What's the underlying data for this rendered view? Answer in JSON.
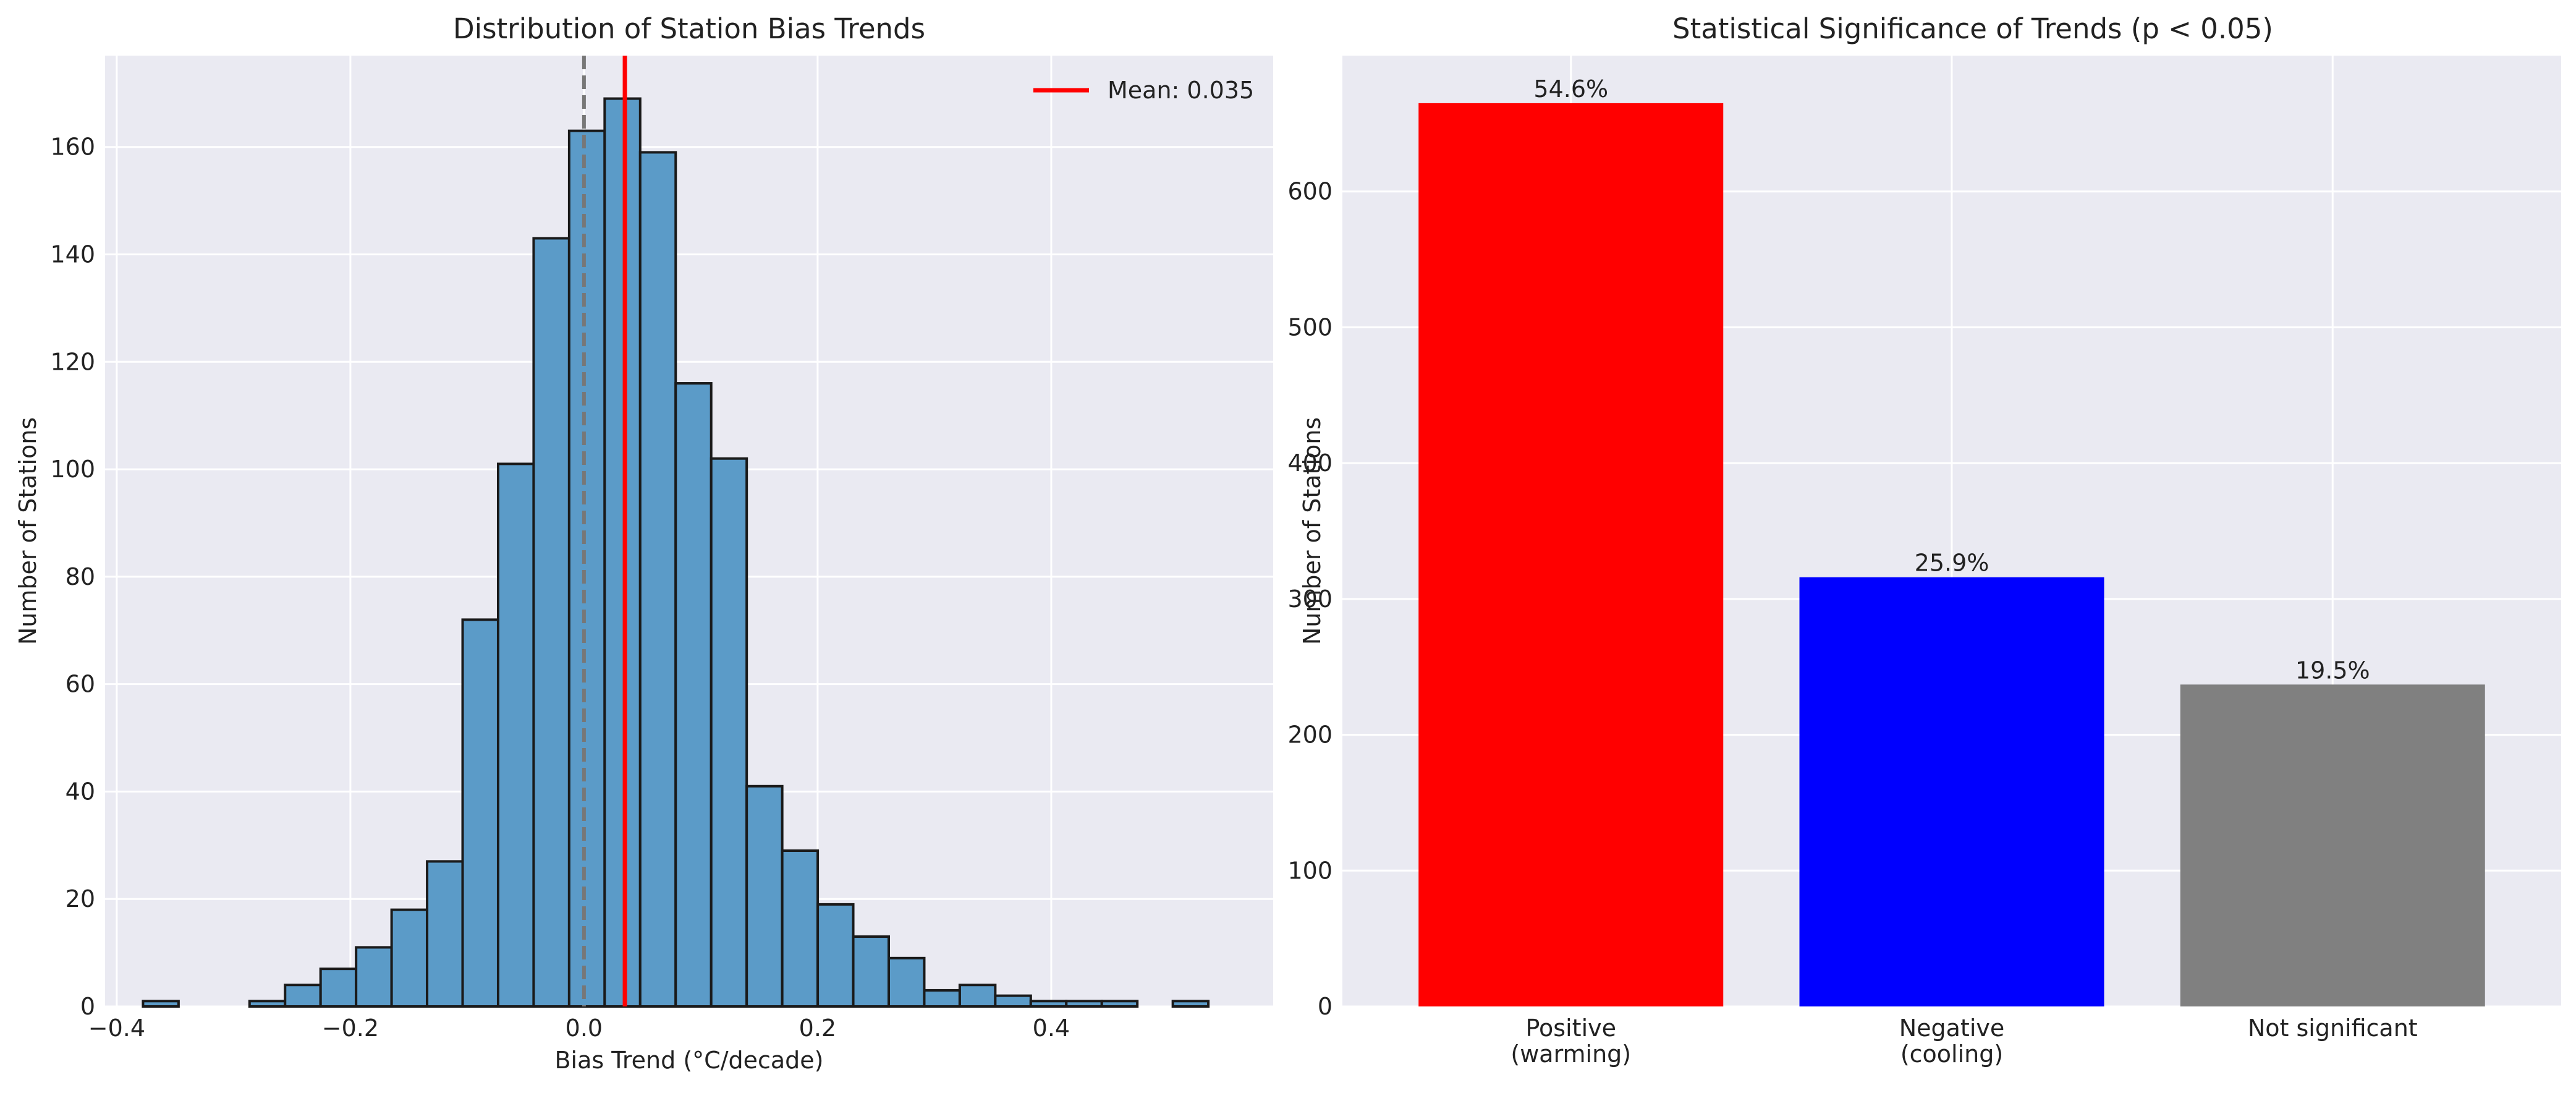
{
  "chart_data": [
    {
      "type": "histogram",
      "title": "Distribution of Station Bias Trends",
      "xlabel": "Bias Trend (°C/decade)",
      "ylabel": "Number of Stations",
      "xlim": [
        -0.41,
        0.59
      ],
      "ylim": [
        0,
        177
      ],
      "xticks": [
        -0.4,
        -0.2,
        0.0,
        0.2,
        0.4
      ],
      "xtick_labels": [
        "−0.4",
        "−0.2",
        "0.0",
        "0.2",
        "0.4"
      ],
      "yticks": [
        0,
        20,
        40,
        60,
        80,
        100,
        120,
        140,
        160
      ],
      "yticks_labels": [
        "0",
        "20",
        "40",
        "60",
        "80",
        "100",
        "120",
        "140",
        "160"
      ],
      "bin_start": -0.3775,
      "bin_width": 0.0304,
      "counts": [
        1,
        0,
        0,
        1,
        4,
        7,
        11,
        18,
        27,
        72,
        101,
        143,
        163,
        169,
        159,
        116,
        102,
        41,
        29,
        19,
        13,
        9,
        3,
        4,
        2,
        1,
        1,
        1,
        0,
        1
      ],
      "bar_color": "#5b9bc8",
      "zero_line": {
        "x": 0.0,
        "style": "dashed",
        "color": "#777777"
      },
      "mean_line": {
        "x": 0.035,
        "color": "#ff0000"
      },
      "legend": {
        "label": "Mean: 0.035",
        "position": "top-right"
      },
      "grid": true
    },
    {
      "type": "bar",
      "title": "Statistical Significance of Trends (p < 0.05)",
      "xlabel": "",
      "ylabel": "Number of Stations",
      "ylim": [
        0,
        700
      ],
      "yticks": [
        0,
        100,
        200,
        300,
        400,
        500,
        600
      ],
      "yticks_labels": [
        "0",
        "100",
        "200",
        "300",
        "400",
        "500",
        "600"
      ],
      "categories": [
        [
          "Positive",
          "(warming)"
        ],
        [
          "Negative",
          "(cooling)"
        ],
        [
          "Not significant"
        ]
      ],
      "values": [
        665,
        316,
        237
      ],
      "colors": [
        "#ff0000",
        "#0000ff",
        "#808080"
      ],
      "labels": [
        "54.6%",
        "25.9%",
        "19.5%"
      ],
      "grid": true
    }
  ]
}
